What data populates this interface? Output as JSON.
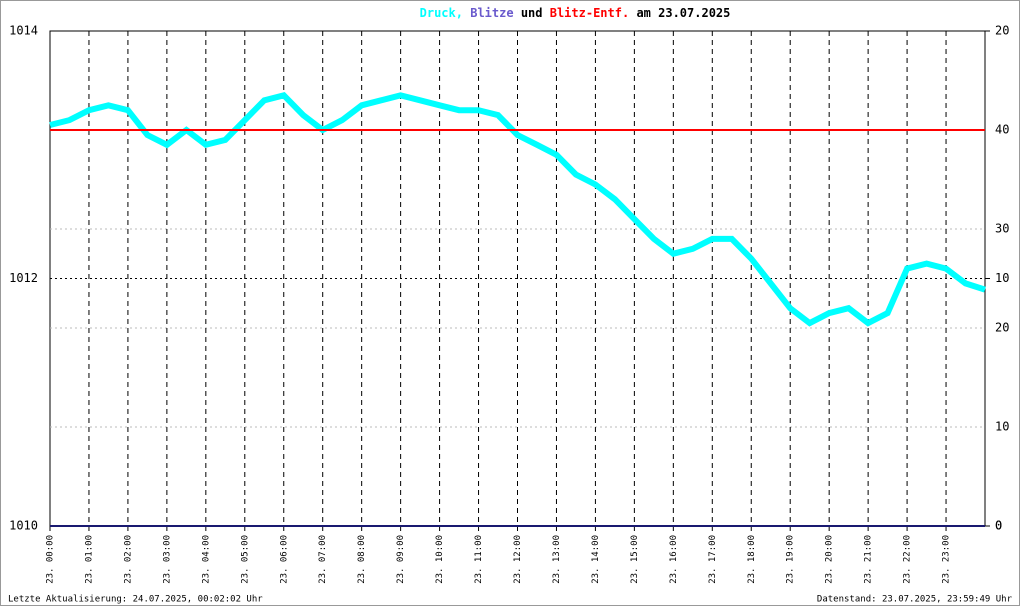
{
  "chart_data": {
    "type": "line",
    "title": [
      {
        "text": "Druck,",
        "color": "#00ffff"
      },
      {
        "text": "Blitze",
        "color": "#6a5acd"
      },
      {
        "text": "und",
        "color": "#000000"
      },
      {
        "text": "Blitz-Entf.",
        "color": "#ff0000"
      },
      {
        "text": "am 23.07.2025",
        "color": "#000000"
      }
    ],
    "xlim": [
      0,
      24
    ],
    "xticks": [
      {
        "value": 0,
        "label": "23. 00:00"
      },
      {
        "value": 1,
        "label": "23. 01:00"
      },
      {
        "value": 2,
        "label": "23. 02:00"
      },
      {
        "value": 3,
        "label": "23. 03:00"
      },
      {
        "value": 4,
        "label": "23. 04:00"
      },
      {
        "value": 5,
        "label": "23. 05:00"
      },
      {
        "value": 6,
        "label": "23. 06:00"
      },
      {
        "value": 7,
        "label": "23. 07:00"
      },
      {
        "value": 8,
        "label": "23. 08:00"
      },
      {
        "value": 9,
        "label": "23. 09:00"
      },
      {
        "value": 10,
        "label": "23. 10:00"
      },
      {
        "value": 11,
        "label": "23. 11:00"
      },
      {
        "value": 12,
        "label": "23. 12:00"
      },
      {
        "value": 13,
        "label": "23. 13:00"
      },
      {
        "value": 14,
        "label": "23. 14:00"
      },
      {
        "value": 15,
        "label": "23. 15:00"
      },
      {
        "value": 16,
        "label": "23. 16:00"
      },
      {
        "value": 17,
        "label": "23. 17:00"
      },
      {
        "value": 18,
        "label": "23. 18:00"
      },
      {
        "value": 19,
        "label": "23. 19:00"
      },
      {
        "value": 20,
        "label": "23. 20:00"
      },
      {
        "value": 21,
        "label": "23. 21:00"
      },
      {
        "value": 22,
        "label": "23. 22:00"
      },
      {
        "value": 23,
        "label": "23. 23:00"
      }
    ],
    "ylim": [
      1010,
      1014
    ],
    "yticks": [
      1010,
      1012,
      1014
    ],
    "y2lim": [
      0,
      20
    ],
    "y2ticks": [
      0,
      10,
      20
    ],
    "y3lim": [
      0,
      50
    ],
    "y3ticks": [
      0,
      10,
      20,
      30,
      40
    ],
    "series": [
      {
        "color": "#00ffff",
        "x": [
          0,
          0.5,
          1,
          1.5,
          2,
          2.5,
          3,
          3.5,
          4,
          4.5,
          5,
          5.5,
          6,
          6.5,
          7,
          7.5,
          8,
          8.5,
          9,
          9.5,
          10,
          10.5,
          11,
          11.5,
          12,
          12.5,
          13,
          13.5,
          14,
          14.5,
          15,
          15.5,
          16,
          16.5,
          17,
          17.5,
          18,
          18.5,
          19,
          19.5,
          20,
          20.5,
          21,
          21.5,
          22,
          22.5,
          23,
          23.5,
          24
        ],
        "values": [
          1013.24,
          1013.28,
          1013.36,
          1013.4,
          1013.36,
          1013.16,
          1013.08,
          1013.2,
          1013.08,
          1013.12,
          1013.28,
          1013.44,
          1013.48,
          1013.32,
          1013.2,
          1013.28,
          1013.4,
          1013.44,
          1013.48,
          1013.44,
          1013.4,
          1013.36,
          1013.36,
          1013.32,
          1013.16,
          1013.08,
          1013.0,
          1012.84,
          1012.76,
          1012.64,
          1012.48,
          1012.32,
          1012.2,
          1012.24,
          1012.32,
          1012.32,
          1012.16,
          1011.96,
          1011.76,
          1011.64,
          1011.72,
          1011.76,
          1011.64,
          1011.72,
          1012.08,
          1012.12,
          1012.08,
          1011.96,
          1011.91
        ]
      },
      {
        "color": "#191970",
        "axis": "y2",
        "x": [
          0,
          24
        ],
        "values": [
          0,
          0
        ]
      },
      {
        "color": "#ff0000",
        "axis": "y3",
        "x": [
          0,
          24
        ],
        "values": [
          40,
          40
        ]
      }
    ],
    "footer_left": "Letzte Aktualisierung: 24.07.2025, 00:02:02 Uhr",
    "footer_right": "Datenstand: 23.07.2025, 23:59:49 Uhr"
  }
}
